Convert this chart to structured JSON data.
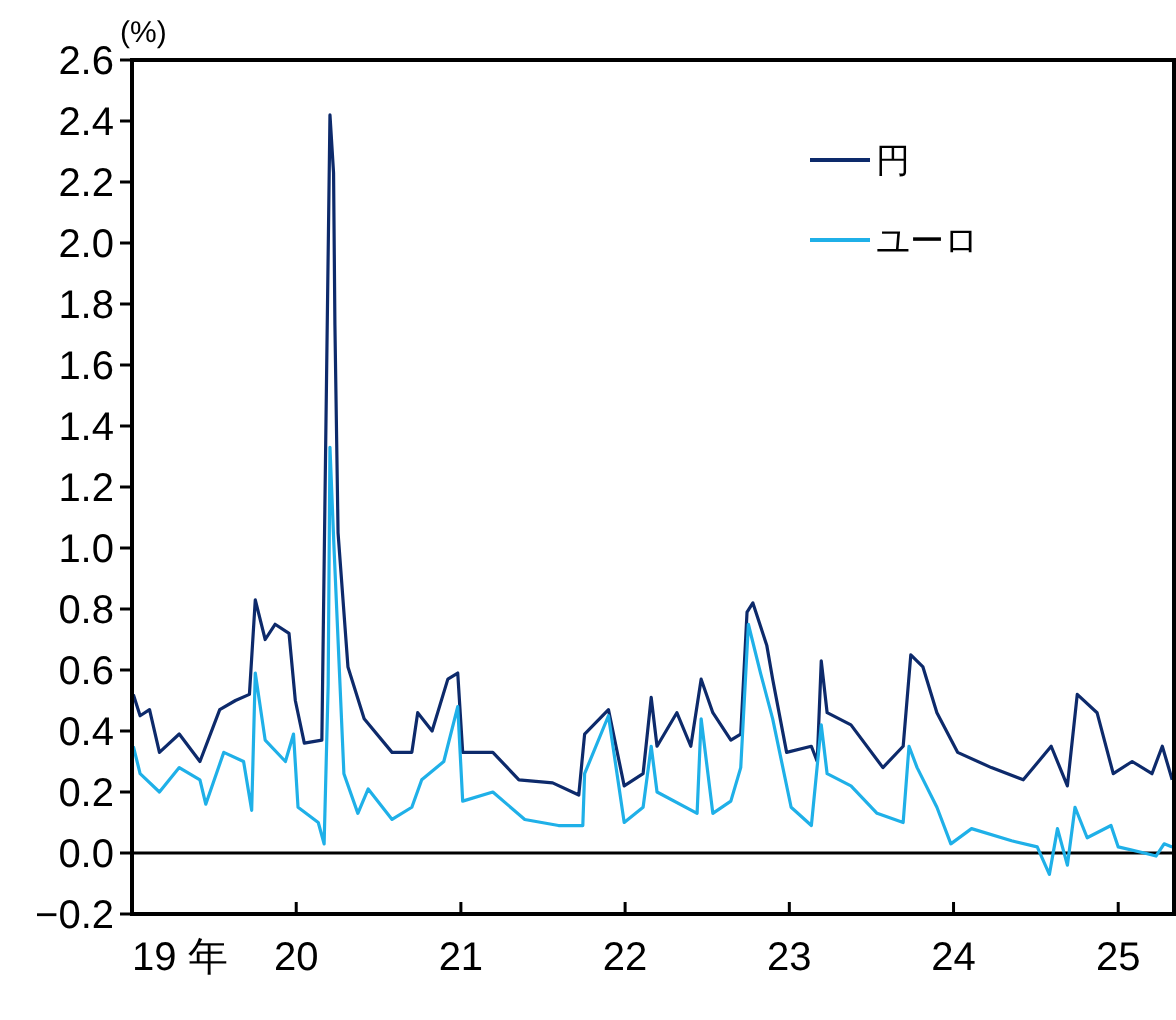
{
  "chart_data": {
    "type": "line",
    "ylabel": "(%)",
    "xlim": [
      "2019-01-01",
      "2025-05-05"
    ],
    "xticks": [
      {
        "value": "2019-01-01",
        "label": "19 年"
      },
      {
        "value": "2020-01-01",
        "label": "20"
      },
      {
        "value": "2021-01-01",
        "label": "21"
      },
      {
        "value": "2022-01-01",
        "label": "22"
      },
      {
        "value": "2023-01-01",
        "label": "23"
      },
      {
        "value": "2024-01-01",
        "label": "24"
      },
      {
        "value": "2025-01-01",
        "label": "25"
      }
    ],
    "ylim": [
      -0.2,
      2.6
    ],
    "yticks": [
      {
        "value": -0.2,
        "label": "−0.2"
      },
      {
        "value": 0,
        "label": "0.0"
      },
      0.2,
      0.4,
      0.6,
      0.8,
      {
        "value": 1,
        "label": "1.0"
      },
      1.2,
      1.4,
      1.6,
      1.8,
      {
        "value": 2,
        "label": "2.0"
      },
      2.2,
      2.4,
      2.6
    ],
    "grid": false,
    "legend": "top right",
    "marker": "none",
    "line_style": "solid",
    "ref_lines": [
      {
        "axis": "y",
        "value": 0,
        "color": "#000000"
      }
    ],
    "series": [
      {
        "name": "円",
        "color": "#0d2a6b",
        "x": [
          "2019-01-04",
          "2019-01-19",
          "2019-02-09",
          "2019-03-03",
          "2019-04-16",
          "2019-06-01",
          "2019-07-15",
          "2019-08-19",
          "2019-09-19",
          "2019-10-02",
          "2019-10-24",
          "2019-11-15",
          "2019-12-16",
          "2019-12-30",
          "2020-01-19",
          "2020-02-27",
          "2020-03-16",
          "2020-03-24",
          "2020-03-27",
          "2020-04-03",
          "2020-04-25",
          "2020-05-31",
          "2020-08-01",
          "2020-09-14",
          "2020-09-27",
          "2020-10-29",
          "2020-12-03",
          "2020-12-25",
          "2021-01-05",
          "2021-03-13",
          "2021-05-10",
          "2021-07-24",
          "2021-09-20",
          "2021-10-03",
          "2021-11-25",
          "2021-12-30",
          "2022-02-10",
          "2022-02-28",
          "2022-03-13",
          "2022-04-26",
          "2022-05-27",
          "2022-06-19",
          "2022-07-15",
          "2022-08-24",
          "2022-09-15",
          "2022-09-29",
          "2022-10-12",
          "2022-11-12",
          "2022-11-25",
          "2022-12-26",
          "2023-02-19",
          "2023-03-04",
          "2023-03-13",
          "2023-03-26",
          "2023-05-18",
          "2023-07-28",
          "2023-09-11",
          "2023-09-28",
          "2023-10-25",
          "2023-11-25",
          "2024-01-10",
          "2024-03-25",
          "2024-06-04",
          "2024-08-05",
          "2024-09-10",
          "2024-10-02",
          "2024-11-15",
          "2024-12-21",
          "2025-02-01",
          "2025-03-17",
          "2025-04-09",
          "2025-05-01"
        ],
        "values": [
          0.52,
          0.45,
          0.47,
          0.33,
          0.39,
          0.3,
          0.47,
          0.5,
          0.52,
          0.83,
          0.7,
          0.75,
          0.72,
          0.5,
          0.36,
          0.37,
          2.42,
          2.23,
          1.73,
          1.05,
          0.61,
          0.44,
          0.33,
          0.33,
          0.46,
          0.4,
          0.57,
          0.59,
          0.33,
          0.33,
          0.24,
          0.23,
          0.19,
          0.39,
          0.47,
          0.22,
          0.26,
          0.51,
          0.35,
          0.46,
          0.35,
          0.57,
          0.46,
          0.37,
          0.39,
          0.79,
          0.82,
          0.68,
          0.57,
          0.33,
          0.35,
          0.3,
          0.63,
          0.46,
          0.42,
          0.28,
          0.35,
          0.65,
          0.61,
          0.46,
          0.33,
          0.28,
          0.24,
          0.35,
          0.22,
          0.52,
          0.46,
          0.26,
          0.3,
          0.26,
          0.35,
          0.24
        ]
      },
      {
        "name": "ユーロ",
        "color": "#1fb0e8",
        "x": [
          "2019-01-04",
          "2019-01-19",
          "2019-03-03",
          "2019-04-16",
          "2019-06-01",
          "2019-06-14",
          "2019-07-24",
          "2019-09-06",
          "2019-09-24",
          "2019-10-02",
          "2019-10-24",
          "2019-12-08",
          "2019-12-26",
          "2020-01-05",
          "2020-02-19",
          "2020-03-03",
          "2020-03-12",
          "2020-03-16",
          "2020-03-25",
          "2020-04-16",
          "2020-05-17",
          "2020-06-09",
          "2020-08-01",
          "2020-09-14",
          "2020-10-06",
          "2020-11-24",
          "2020-12-25",
          "2021-01-05",
          "2021-03-13",
          "2021-05-23",
          "2021-08-06",
          "2021-09-29",
          "2021-10-03",
          "2021-11-25",
          "2021-12-30",
          "2022-02-10",
          "2022-02-28",
          "2022-03-13",
          "2022-06-10",
          "2022-06-19",
          "2022-07-15",
          "2022-08-24",
          "2022-09-15",
          "2022-10-02",
          "2022-10-29",
          "2022-11-25",
          "2023-01-05",
          "2023-02-19",
          "2023-03-13",
          "2023-03-26",
          "2023-05-18",
          "2023-07-15",
          "2023-09-11",
          "2023-09-24",
          "2023-10-12",
          "2023-11-25",
          "2023-12-26",
          "2024-02-10",
          "2024-05-09",
          "2024-07-05",
          "2024-08-01",
          "2024-08-19",
          "2024-09-10",
          "2024-09-27",
          "2024-10-24",
          "2024-12-16",
          "2025-01-01",
          "2025-02-28",
          "2025-03-26",
          "2025-04-13",
          "2025-05-01"
        ],
        "values": [
          0.35,
          0.26,
          0.2,
          0.28,
          0.24,
          0.16,
          0.33,
          0.3,
          0.14,
          0.59,
          0.37,
          0.3,
          0.39,
          0.15,
          0.1,
          0.03,
          0.55,
          1.33,
          1.0,
          0.26,
          0.13,
          0.21,
          0.11,
          0.15,
          0.24,
          0.3,
          0.48,
          0.17,
          0.2,
          0.11,
          0.09,
          0.09,
          0.26,
          0.45,
          0.1,
          0.15,
          0.35,
          0.2,
          0.13,
          0.44,
          0.13,
          0.17,
          0.28,
          0.75,
          0.59,
          0.44,
          0.15,
          0.09,
          0.42,
          0.26,
          0.22,
          0.13,
          0.1,
          0.35,
          0.28,
          0.15,
          0.03,
          0.08,
          0.04,
          0.02,
          -0.07,
          0.08,
          -0.04,
          0.15,
          0.05,
          0.09,
          0.02,
          0.0,
          -0.01,
          0.03,
          0.02
        ]
      }
    ]
  }
}
